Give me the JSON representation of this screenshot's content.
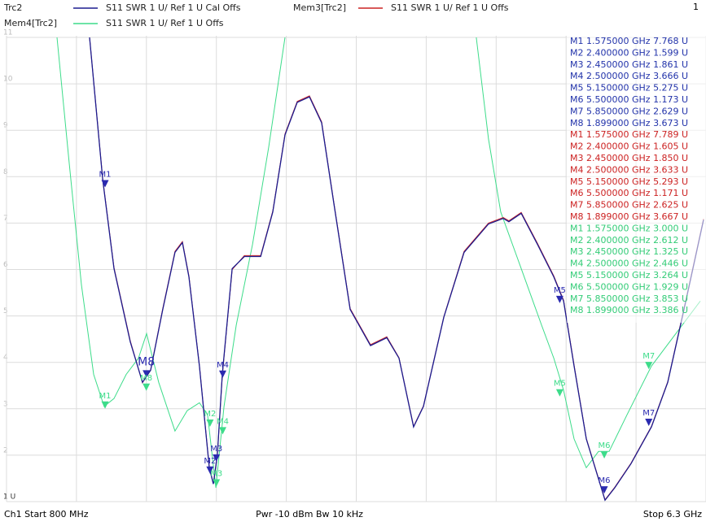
{
  "chart_data": {
    "type": "line",
    "channel_number": "1",
    "footer": {
      "start": "Ch1  Start  800 MHz",
      "center": "Pwr -10 dBm  Bw 10 kHz",
      "stop": "Stop  6.3 GHz"
    },
    "xlim": [
      0.8,
      6.3
    ],
    "xticks": [
      0.8,
      1.35,
      1.9,
      2.45,
      3.0,
      3.55,
      4.1,
      4.65,
      5.2,
      5.75,
      6.3
    ],
    "ylim": [
      1,
      11
    ],
    "yticks": [
      {
        "value": 1,
        "label": "1 U"
      },
      2,
      3,
      4,
      5,
      6,
      7,
      8,
      9,
      10,
      11
    ],
    "grid": true,
    "series": [
      {
        "name": "Trc2",
        "label": "S11  SWR  1 U/ Ref 1 U  Cal Offs",
        "color": "#1c1c8f",
        "x": [
          1.453,
          1.556,
          1.645,
          1.773,
          1.869,
          1.933,
          2.029,
          2.125,
          2.183,
          2.234,
          2.317,
          2.394,
          2.426,
          2.458,
          2.497,
          2.574,
          2.67,
          2.798,
          2.894,
          2.99,
          3.086,
          3.182,
          3.278,
          3.374,
          3.502,
          3.662,
          3.79,
          3.886,
          4.001,
          4.078,
          4.238,
          4.398,
          4.59,
          4.706,
          4.75,
          4.847,
          4.975,
          5.103,
          5.18,
          5.263,
          5.359,
          5.506,
          5.583,
          5.711,
          5.871,
          5.999,
          6.127,
          6.281
        ],
        "values": [
          11,
          7.94,
          6.02,
          4.44,
          3.57,
          3.83,
          5.14,
          6.37,
          6.58,
          5.84,
          3.92,
          1.73,
          1.38,
          2.0,
          3.74,
          6.02,
          6.28,
          6.28,
          7.24,
          8.9,
          9.6,
          9.72,
          9.16,
          7.42,
          5.14,
          4.36,
          4.53,
          4.09,
          2.61,
          3.05,
          4.97,
          6.37,
          6.98,
          7.1,
          7.03,
          7.21,
          6.54,
          5.84,
          5.32,
          3.92,
          2.35,
          1.03,
          1.3,
          1.82,
          2.61,
          3.57,
          5.14,
          7.07
        ],
        "markers": [
          {
            "name": "M1",
            "x": 1.575,
            "x_label": "1.575000 GHz",
            "value": 7.768,
            "value_label": "7.768 U"
          },
          {
            "name": "M2",
            "x": 2.4,
            "x_label": "2.400000 GHz",
            "value": 1.599,
            "value_label": "1.599 U"
          },
          {
            "name": "M3",
            "x": 2.45,
            "x_label": "2.450000 GHz",
            "value": 1.861,
            "value_label": "1.861 U"
          },
          {
            "name": "M4",
            "x": 2.5,
            "x_label": "2.500000 GHz",
            "value": 3.666,
            "value_label": "3.666 U"
          },
          {
            "name": "M5",
            "x": 5.15,
            "x_label": "5.150000 GHz",
            "value": 5.275,
            "value_label": "5.275 U"
          },
          {
            "name": "M6",
            "x": 5.5,
            "x_label": "5.500000 GHz",
            "value": 1.173,
            "value_label": "1.173 U"
          },
          {
            "name": "M7",
            "x": 5.85,
            "x_label": "5.850000 GHz",
            "value": 2.629,
            "value_label": "2.629 U"
          },
          {
            "name": "M8",
            "x": 1.899,
            "x_label": "1.899000 GHz",
            "value": 3.673,
            "value_label": "3.673 U"
          }
        ]
      },
      {
        "name": "Mem3[Trc2]",
        "label": "S11 SWR 1 U/ Ref 1 U Offs",
        "color": "#cc2222",
        "x": [
          1.453,
          1.556,
          1.645,
          1.773,
          1.869,
          1.933,
          2.029,
          2.125,
          2.183,
          2.234,
          2.317,
          2.394,
          2.426,
          2.458,
          2.497,
          2.574,
          2.67,
          2.798,
          2.894,
          2.99,
          3.086,
          3.182,
          3.278,
          3.374,
          3.502,
          3.662,
          3.79,
          3.886,
          4.001,
          4.078,
          4.238,
          4.398,
          4.59,
          4.706,
          4.75,
          4.847,
          4.975,
          5.103,
          5.18,
          5.263,
          5.359,
          5.506,
          5.583,
          5.711,
          5.871,
          5.999,
          6.127,
          6.281
        ],
        "values": [
          11,
          7.96,
          6.04,
          4.46,
          3.56,
          3.84,
          5.16,
          6.39,
          6.6,
          5.86,
          3.93,
          1.74,
          1.39,
          1.99,
          3.72,
          6.0,
          6.3,
          6.3,
          7.26,
          8.92,
          9.62,
          9.74,
          9.18,
          7.44,
          5.16,
          4.38,
          4.55,
          4.1,
          2.62,
          3.06,
          4.98,
          6.39,
          7.0,
          7.12,
          7.05,
          7.23,
          6.56,
          5.86,
          5.34,
          3.94,
          2.36,
          1.04,
          1.31,
          1.83,
          2.62,
          3.58,
          5.16,
          7.09
        ],
        "markers": [
          {
            "name": "M1",
            "x": 1.575,
            "x_label": "1.575000 GHz",
            "value": 7.789,
            "value_label": "7.789 U"
          },
          {
            "name": "M2",
            "x": 2.4,
            "x_label": "2.400000 GHz",
            "value": 1.605,
            "value_label": "1.605 U"
          },
          {
            "name": "M3",
            "x": 2.45,
            "x_label": "2.450000 GHz",
            "value": 1.85,
            "value_label": "1.850 U"
          },
          {
            "name": "M4",
            "x": 2.5,
            "x_label": "2.500000 GHz",
            "value": 3.633,
            "value_label": "3.633 U"
          },
          {
            "name": "M5",
            "x": 5.15,
            "x_label": "5.150000 GHz",
            "value": 5.293,
            "value_label": "5.293 U"
          },
          {
            "name": "M6",
            "x": 5.5,
            "x_label": "5.500000 GHz",
            "value": 1.171,
            "value_label": "1.171 U"
          },
          {
            "name": "M7",
            "x": 5.85,
            "x_label": "5.850000 GHz",
            "value": 2.625,
            "value_label": "2.625 U"
          },
          {
            "name": "M8",
            "x": 1.899,
            "x_label": "1.899000 GHz",
            "value": 3.667,
            "value_label": "3.667 U"
          }
        ]
      },
      {
        "name": "Mem4[Trc2]",
        "label": "S11 SWR 1 U/ Ref 1 U Offs",
        "color": "#3ddc8a",
        "x": [
          1.197,
          1.293,
          1.389,
          1.485,
          1.568,
          1.645,
          1.741,
          1.837,
          1.901,
          1.997,
          2.125,
          2.221,
          2.317,
          2.381,
          2.446,
          2.51,
          2.606,
          2.734,
          2.862,
          2.99,
          3.5,
          4.494,
          4.59,
          4.686,
          4.847,
          5.007,
          5.103,
          5.18,
          5.263,
          5.359,
          5.455,
          5.538,
          5.679,
          5.871,
          6.063,
          6.255
        ],
        "values": [
          11,
          8.29,
          5.67,
          3.74,
          3.05,
          3.22,
          3.74,
          4.09,
          4.62,
          3.57,
          2.52,
          2.96,
          3.13,
          2.87,
          1.3,
          3.05,
          4.8,
          6.54,
          8.64,
          11,
          null,
          11,
          8.81,
          7.24,
          6.02,
          4.8,
          4.09,
          3.4,
          2.35,
          1.73,
          2.08,
          2.08,
          2.87,
          3.92,
          4.62,
          5.32
        ],
        "markers": [
          {
            "name": "M1",
            "x": 1.575,
            "x_label": "1.575000 GHz",
            "value": 3.0,
            "value_label": "3.000 U"
          },
          {
            "name": "M2",
            "x": 2.4,
            "x_label": "2.400000 GHz",
            "value": 2.612,
            "value_label": "2.612 U"
          },
          {
            "name": "M3",
            "x": 2.45,
            "x_label": "2.450000 GHz",
            "value": 1.325,
            "value_label": "1.325 U"
          },
          {
            "name": "M4",
            "x": 2.5,
            "x_label": "2.500000 GHz",
            "value": 2.446,
            "value_label": "2.446 U"
          },
          {
            "name": "M5",
            "x": 5.15,
            "x_label": "5.150000 GHz",
            "value": 3.264,
            "value_label": "3.264 U"
          },
          {
            "name": "M6",
            "x": 5.5,
            "x_label": "5.500000 GHz",
            "value": 1.929,
            "value_label": "1.929 U"
          },
          {
            "name": "M7",
            "x": 5.85,
            "x_label": "5.850000 GHz",
            "value": 3.853,
            "value_label": "3.853 U"
          },
          {
            "name": "M8",
            "x": 1.899,
            "x_label": "1.899000 GHz",
            "value": 3.386,
            "value_label": "3.386 U"
          }
        ]
      }
    ]
  }
}
